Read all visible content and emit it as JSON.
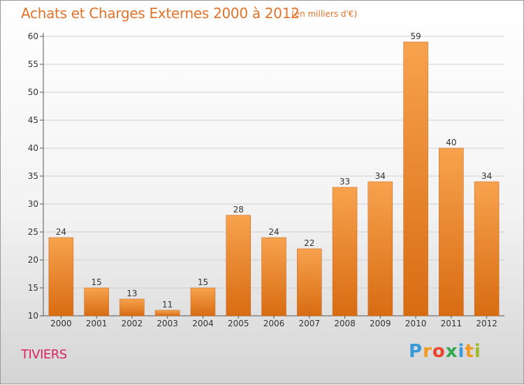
{
  "title": "Achats et Charges Externes 2000 à 2012",
  "subtitle": "(en milliers d'€)",
  "commune": "TIVIERS",
  "brand": {
    "letters": [
      "P",
      "r",
      "o",
      "x",
      "i",
      "t",
      "i"
    ],
    "colors": [
      "#3a9ad9",
      "#f29a1f",
      "#e8452c",
      "#34a853",
      "#3a9ad9",
      "#f29a1f",
      "#9bbb2b"
    ]
  },
  "colors": {
    "bar_top": "#f7a24e",
    "bar_bottom": "#d86c12",
    "axis": "#555555",
    "grid": "#cfcfcf"
  },
  "chart_data": {
    "type": "bar",
    "categories": [
      "2000",
      "2001",
      "2002",
      "2003",
      "2004",
      "2005",
      "2006",
      "2007",
      "2008",
      "2009",
      "2010",
      "2011",
      "2012"
    ],
    "values": [
      24,
      15,
      13,
      11,
      15,
      28,
      24,
      22,
      33,
      34,
      59,
      40,
      34
    ],
    "ylim": [
      10,
      60
    ],
    "yticks": [
      10,
      15,
      20,
      25,
      30,
      35,
      40,
      45,
      50,
      55,
      60
    ],
    "grid": true
  }
}
